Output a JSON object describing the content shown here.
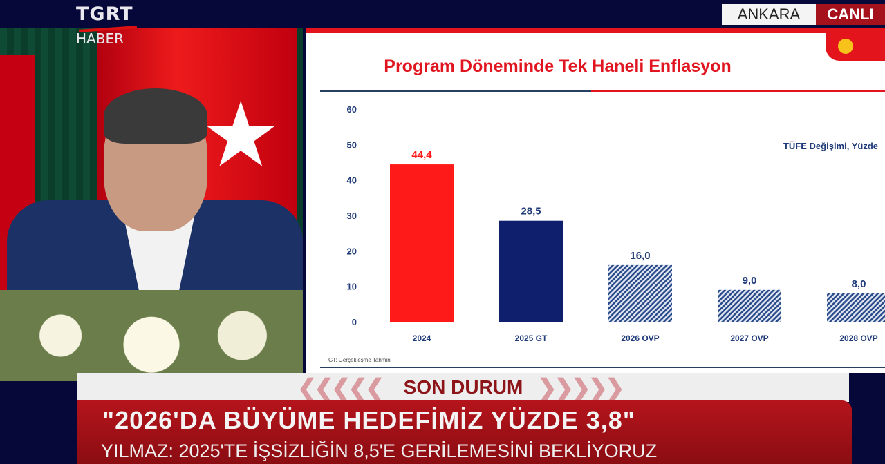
{
  "broadcast": {
    "channel_top": "TGRT",
    "channel_bottom": "HABER",
    "location": "ANKARA",
    "live_label": "CANLI"
  },
  "slide": {
    "title": "Program Döneminde Tek Haneli Enflasyon",
    "footnote": "GT: Gerçekleşme Tahmini"
  },
  "chart_data": {
    "type": "bar",
    "title": "Program Döneminde Tek Haneli Enflasyon",
    "ylabel": "TÜFE Değişimi, Yüzde",
    "categories": [
      "2024",
      "2025 GT",
      "2026 OVP",
      "2027 OVP",
      "2028 OVP"
    ],
    "values": [
      44.4,
      28.5,
      16.0,
      9.0,
      8.0
    ],
    "data_labels": [
      "44,4",
      "28,5",
      "16,0",
      "9,0",
      "8,0"
    ],
    "yticks": [
      "0",
      "10",
      "20",
      "30",
      "40",
      "50",
      "60"
    ],
    "ylim": [
      0,
      60
    ],
    "grid": false,
    "colors": [
      "#ff1a1a",
      "#0f1f6e",
      "hatched-#2a4a8a",
      "hatched-#2a4a8a",
      "hatched-#2a4a8a"
    ]
  },
  "lower_third": {
    "tag": "SON DURUM",
    "headline": "\"2026'DA BÜYÜME HEDEFİMİZ YÜZDE 3,8\"",
    "subline": "YILMAZ: 2025'TE İŞSİZLİĞİN 8,5'E GERİLEMESİNİ BEKLİYORUZ"
  }
}
